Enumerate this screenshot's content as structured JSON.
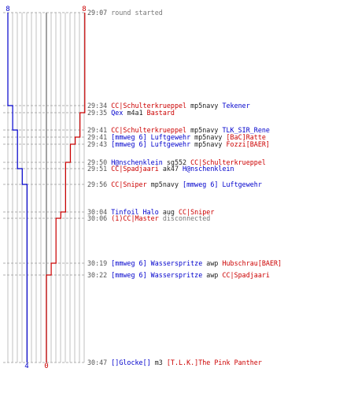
{
  "colors": {
    "blue": "#0000cc",
    "red": "#cc0000",
    "grid": "#c0c0c0",
    "center_line": "#707070",
    "dash": "#999999",
    "time": "#555555",
    "event": "#777777"
  },
  "scores": {
    "blue_start": "8",
    "red_start": "8",
    "blue_end": "4",
    "red_end": "0"
  },
  "chart_data": {
    "type": "line",
    "title": "",
    "events": [
      {
        "time": "29:07",
        "parts": [
          {
            "t": "round started",
            "c": "event"
          }
        ]
      },
      {
        "time": "29:34",
        "parts": [
          {
            "t": "CC|Schulterkrueppel",
            "c": "red"
          },
          {
            "t": " mp5navy ",
            "c": "plain"
          },
          {
            "t": "Tekener",
            "c": "blue"
          }
        ]
      },
      {
        "time": "29:35",
        "parts": [
          {
            "t": "Qex",
            "c": "blue"
          },
          {
            "t": " m4a1 ",
            "c": "plain"
          },
          {
            "t": "Bastard",
            "c": "red"
          }
        ]
      },
      {
        "time": "29:41",
        "parts": [
          {
            "t": "CC|Schulterkrueppel",
            "c": "red"
          },
          {
            "t": " mp5navy ",
            "c": "plain"
          },
          {
            "t": "TLK_SIR_Rene",
            "c": "blue"
          }
        ]
      },
      {
        "time": "29:41",
        "parts": [
          {
            "t": "[mmweg 6] Luftgewehr",
            "c": "blue"
          },
          {
            "t": " mp5navy ",
            "c": "plain"
          },
          {
            "t": "[BaC]Ratte",
            "c": "red"
          }
        ]
      },
      {
        "time": "29:43",
        "parts": [
          {
            "t": "[mmweg 6] Luftgewehr",
            "c": "blue"
          },
          {
            "t": " mp5navy ",
            "c": "plain"
          },
          {
            "t": "Fozzi[BAER]",
            "c": "red"
          }
        ]
      },
      {
        "time": "29:50",
        "parts": [
          {
            "t": "H@nschenklein",
            "c": "blue"
          },
          {
            "t": " sg552 ",
            "c": "plain"
          },
          {
            "t": "CC|Schulterkrueppel",
            "c": "red"
          }
        ]
      },
      {
        "time": "29:51",
        "parts": [
          {
            "t": "CC|Spadjaari",
            "c": "red"
          },
          {
            "t": " ak47 ",
            "c": "plain"
          },
          {
            "t": "H@nschenklein",
            "c": "blue"
          }
        ]
      },
      {
        "time": "29:56",
        "parts": [
          {
            "t": "CC|Sniper",
            "c": "red"
          },
          {
            "t": " mp5navy ",
            "c": "plain"
          },
          {
            "t": "[mmweg 6] Luftgewehr",
            "c": "blue"
          }
        ]
      },
      {
        "time": "30:04",
        "parts": [
          {
            "t": "Tinfoil Halo",
            "c": "blue"
          },
          {
            "t": " aug ",
            "c": "plain"
          },
          {
            "t": "CC|Sniper",
            "c": "red"
          }
        ]
      },
      {
        "time": "30:06",
        "parts": [
          {
            "t": "(1)CC|Master",
            "c": "red"
          },
          {
            "t": " disconnected",
            "c": "event"
          }
        ]
      },
      {
        "time": "30:19",
        "parts": [
          {
            "t": "[mmweg 6] Wasserspritze",
            "c": "blue"
          },
          {
            "t": " awp ",
            "c": "plain"
          },
          {
            "t": "Hubschrau[BAER]",
            "c": "red"
          }
        ]
      },
      {
        "time": "30:22",
        "parts": [
          {
            "t": "[mmweg 6] Wasserspritze",
            "c": "blue"
          },
          {
            "t": " awp ",
            "c": "plain"
          },
          {
            "t": "CC|Spadjaari",
            "c": "red"
          }
        ]
      },
      {
        "time": "30:47",
        "parts": [
          {
            "t": "[]Glocke[]",
            "c": "blue"
          },
          {
            "t": " m3 ",
            "c": "plain"
          },
          {
            "t": "[T.L.K.]The Pink Panther",
            "c": "red"
          }
        ]
      }
    ],
    "series": [
      {
        "team": "blue",
        "alive_after_event": [
          8,
          7,
          7,
          6,
          6,
          6,
          6,
          5,
          4,
          4,
          4,
          4,
          4,
          4
        ]
      },
      {
        "team": "red",
        "alive_after_event": [
          8,
          8,
          7,
          7,
          6,
          5,
          4,
          4,
          4,
          3,
          2,
          1,
          0,
          0
        ]
      }
    ],
    "ylim": [
      0,
      8
    ]
  }
}
